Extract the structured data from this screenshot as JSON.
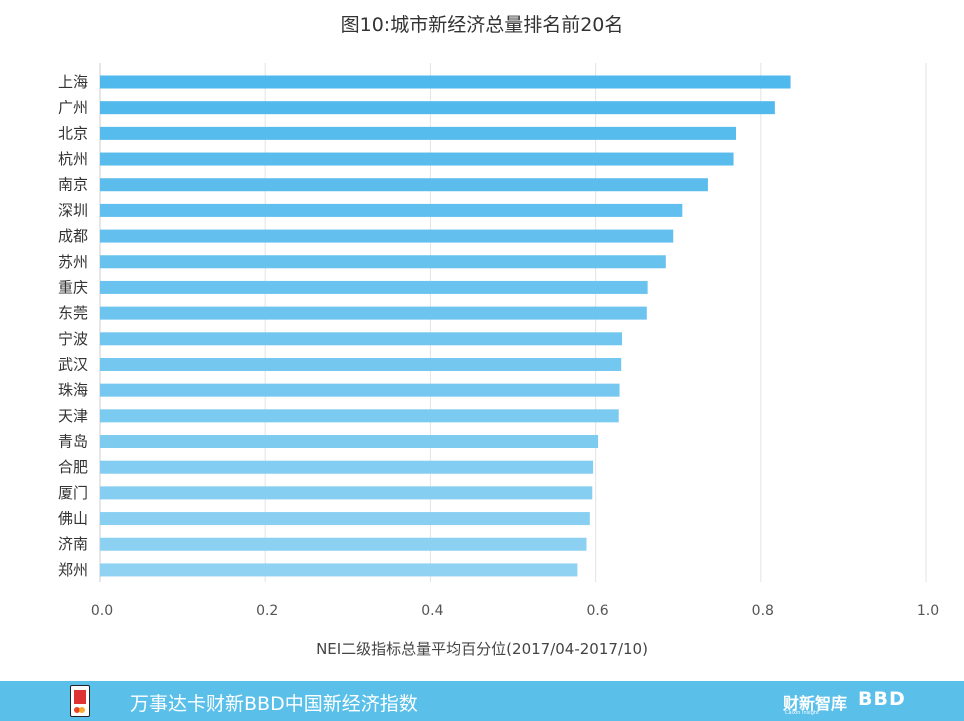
{
  "chart_data": {
    "type": "bar",
    "orientation": "horizontal",
    "title": "图10:城市新经济总量排名前20名",
    "xlabel": "NEI二级指标总量平均百分位(2017/04-2017/10)",
    "categories": [
      "上海",
      "广州",
      "北京",
      "杭州",
      "南京",
      "深圳",
      "成都",
      "苏州",
      "重庆",
      "东莞",
      "宁波",
      "武汉",
      "珠海",
      "天津",
      "青岛",
      "合肥",
      "厦门",
      "佛山",
      "济南",
      "郑州"
    ],
    "values": [
      0.836,
      0.817,
      0.77,
      0.767,
      0.736,
      0.705,
      0.694,
      0.685,
      0.663,
      0.662,
      0.632,
      0.631,
      0.629,
      0.628,
      0.603,
      0.597,
      0.596,
      0.593,
      0.589,
      0.578
    ],
    "xlim": [
      0,
      1.0
    ],
    "xticks": [
      "0.0",
      "0.2",
      "0.4",
      "0.6",
      "0.8",
      "1.0"
    ],
    "grid": "vertical",
    "bar_color_top": "#4fb8ec",
    "bar_color_bottom": "#8fd2f2"
  },
  "footer": {
    "text": "万事达卡财新BBD中国新经济指数",
    "brand1": "财新智库",
    "brand1_sub": "Caixin Insight",
    "brand2": "BBD",
    "background": "#5ac0ea"
  }
}
